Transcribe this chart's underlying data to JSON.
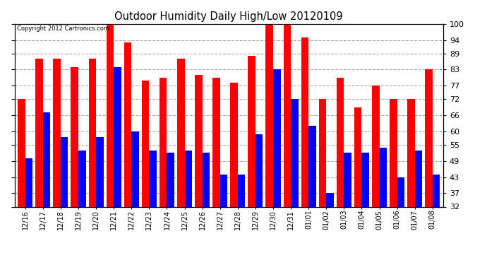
{
  "title": "Outdoor Humidity Daily High/Low 20120109",
  "copyright": "Copyright 2012 Cartronics.com",
  "dates": [
    "12/16",
    "12/17",
    "12/18",
    "12/19",
    "12/20",
    "12/21",
    "12/22",
    "12/23",
    "12/24",
    "12/25",
    "12/26",
    "12/27",
    "12/28",
    "12/29",
    "12/30",
    "12/31",
    "01/01",
    "01/02",
    "01/03",
    "01/04",
    "01/05",
    "01/06",
    "01/07",
    "01/08"
  ],
  "high": [
    72,
    87,
    87,
    84,
    87,
    100,
    93,
    79,
    80,
    87,
    81,
    80,
    78,
    88,
    100,
    100,
    95,
    72,
    80,
    69,
    77,
    72,
    72,
    83
  ],
  "low": [
    50,
    67,
    58,
    53,
    58,
    84,
    60,
    53,
    52,
    53,
    52,
    44,
    44,
    59,
    83,
    72,
    62,
    37,
    52,
    52,
    54,
    43,
    53,
    44
  ],
  "high_color": "#FF0000",
  "low_color": "#0000FF",
  "bg_color": "#FFFFFF",
  "plot_bg_color": "#FFFFFF",
  "grid_color": "#AAAAAA",
  "ymin": 32,
  "ymax": 100,
  "yticks": [
    32,
    37,
    43,
    49,
    55,
    60,
    66,
    72,
    77,
    83,
    89,
    94,
    100
  ],
  "figwidth": 6.9,
  "figheight": 3.75,
  "dpi": 100
}
